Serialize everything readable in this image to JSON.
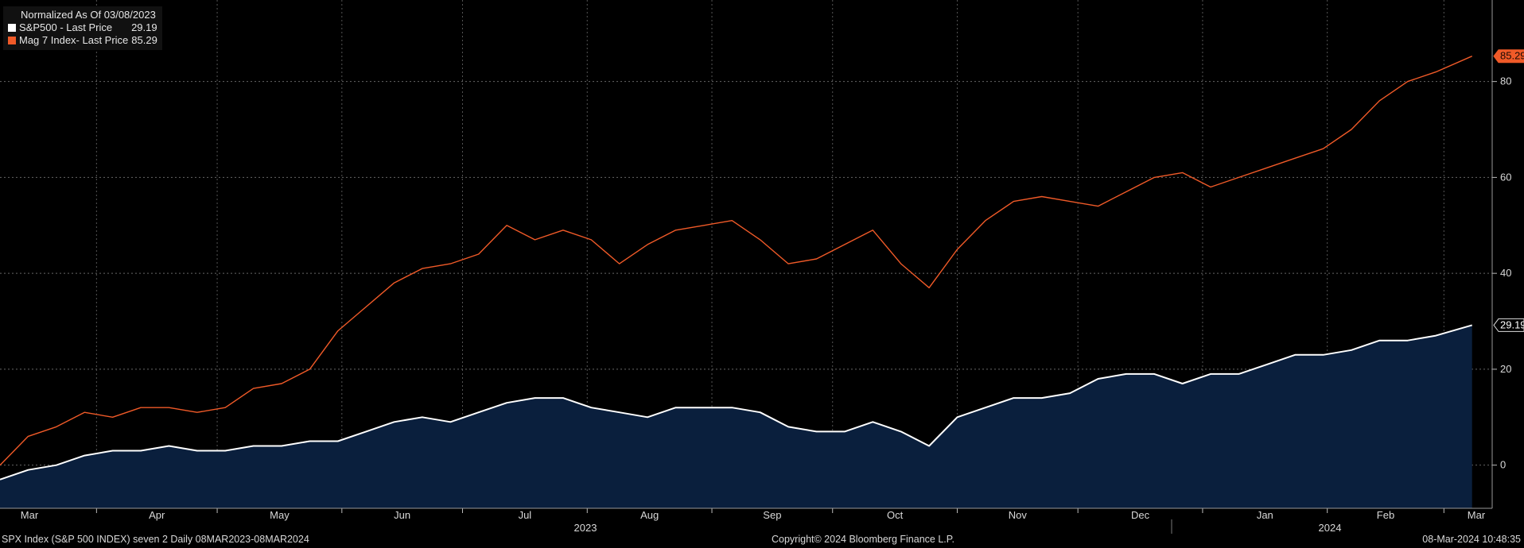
{
  "legend": {
    "title": "Normalized As Of 03/08/2023",
    "items": [
      {
        "label": "S&P500 - Last Price",
        "value": "29.19",
        "color": "#ffffff"
      },
      {
        "label": "Mag 7 Index- Last Price",
        "value": "85.29",
        "color": "#f05a28"
      }
    ]
  },
  "footer": {
    "left": "SPX Index (S&P 500 INDEX) seven 2  Daily 08MAR2023-08MAR2024",
    "center": "Copyright© 2024 Bloomberg Finance L.P.",
    "right": "08-Mar-2024 10:48:35"
  },
  "chart_data": {
    "type": "line",
    "ylim": [
      -9,
      97
    ],
    "yticks": [
      0,
      20,
      40,
      60,
      80
    ],
    "month_labels": [
      "Mar",
      "Apr",
      "May",
      "Jun",
      "Jul",
      "Aug",
      "Sep",
      "Oct",
      "Nov",
      "Dec",
      "Jan",
      "Feb",
      "Mar"
    ],
    "year_labels": [
      "2023",
      "2024"
    ],
    "x": [
      "2023-03-08",
      "2023-03-15",
      "2023-03-22",
      "2023-03-29",
      "2023-04-05",
      "2023-04-12",
      "2023-04-19",
      "2023-04-26",
      "2023-05-03",
      "2023-05-10",
      "2023-05-17",
      "2023-05-24",
      "2023-05-31",
      "2023-06-07",
      "2023-06-14",
      "2023-06-21",
      "2023-06-28",
      "2023-07-05",
      "2023-07-12",
      "2023-07-19",
      "2023-07-26",
      "2023-08-02",
      "2023-08-09",
      "2023-08-16",
      "2023-08-23",
      "2023-08-30",
      "2023-09-06",
      "2023-09-13",
      "2023-09-20",
      "2023-09-27",
      "2023-10-04",
      "2023-10-11",
      "2023-10-18",
      "2023-10-25",
      "2023-11-01",
      "2023-11-08",
      "2023-11-15",
      "2023-11-22",
      "2023-11-29",
      "2023-12-06",
      "2023-12-13",
      "2023-12-20",
      "2023-12-27",
      "2024-01-03",
      "2024-01-10",
      "2024-01-17",
      "2024-01-24",
      "2024-01-31",
      "2024-02-07",
      "2024-02-14",
      "2024-02-21",
      "2024-02-28",
      "2024-03-08"
    ],
    "series": [
      {
        "name": "S&P500 - Last Price",
        "color": "#ffffff",
        "fill": "#0a1f3d",
        "values": [
          -3,
          -1,
          0,
          2,
          3,
          3,
          4,
          3,
          3,
          4,
          4,
          5,
          5,
          7,
          9,
          10,
          9,
          11,
          13,
          14,
          14,
          12,
          11,
          10,
          12,
          12,
          12,
          11,
          8,
          7,
          7,
          9,
          7,
          4,
          10,
          12,
          14,
          14,
          15,
          18,
          19,
          19,
          17,
          19,
          19,
          21,
          23,
          23,
          24,
          26,
          26,
          27,
          29.19
        ]
      },
      {
        "name": "Mag 7 Index- Last Price",
        "color": "#f05a28",
        "values": [
          0,
          6,
          8,
          11,
          10,
          12,
          12,
          11,
          12,
          16,
          17,
          20,
          28,
          33,
          38,
          41,
          42,
          44,
          50,
          47,
          49,
          47,
          42,
          46,
          49,
          50,
          51,
          47,
          42,
          43,
          46,
          49,
          42,
          37,
          45,
          51,
          55,
          56,
          55,
          54,
          57,
          60,
          61,
          58,
          60,
          62,
          64,
          66,
          70,
          76,
          80,
          82,
          85.29
        ]
      }
    ]
  }
}
